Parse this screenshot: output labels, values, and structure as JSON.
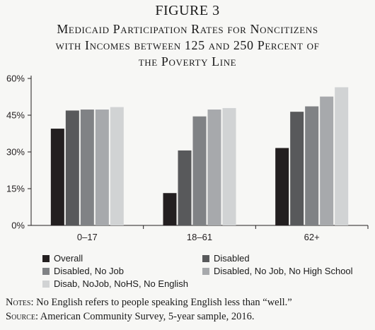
{
  "figure_label": "FIGURE 3",
  "title_lines": [
    "Medicaid Participation Rates for Noncitizens",
    "with Incomes between 125 and 250 Percent of",
    "the Poverty Line"
  ],
  "notes": {
    "notes_label": "Notes:",
    "notes_text": " No English refers to people speaking English less than “well.”",
    "source_label": "Source:",
    "source_text": " American Community Survey, 5-year sample, 2016."
  },
  "chart_data": {
    "type": "bar",
    "categories": [
      "0–17",
      "18–61",
      "62+"
    ],
    "y_ticks": [
      "0%",
      "15%",
      "30%",
      "45%",
      "60%"
    ],
    "ylim": [
      0,
      60
    ],
    "grid": false,
    "legend_position": "bottom",
    "series": [
      {
        "name": "Overall",
        "color": "#231f20",
        "values": [
          39.5,
          13.2,
          31.6
        ]
      },
      {
        "name": "Disabled",
        "color": "#58595b",
        "values": [
          46.9,
          30.6,
          46.4
        ]
      },
      {
        "name": "Disabled, No Job",
        "color": "#808285",
        "values": [
          47.3,
          44.5,
          48.6
        ]
      },
      {
        "name": "Disabled, No Job, No High School",
        "color": "#a7a9ac",
        "values": [
          47.3,
          47.3,
          52.6
        ]
      },
      {
        "name": "Disab, NoJob, NoHS, No English",
        "color": "#d1d3d4",
        "values": [
          48.3,
          47.9,
          56.4
        ]
      }
    ]
  }
}
